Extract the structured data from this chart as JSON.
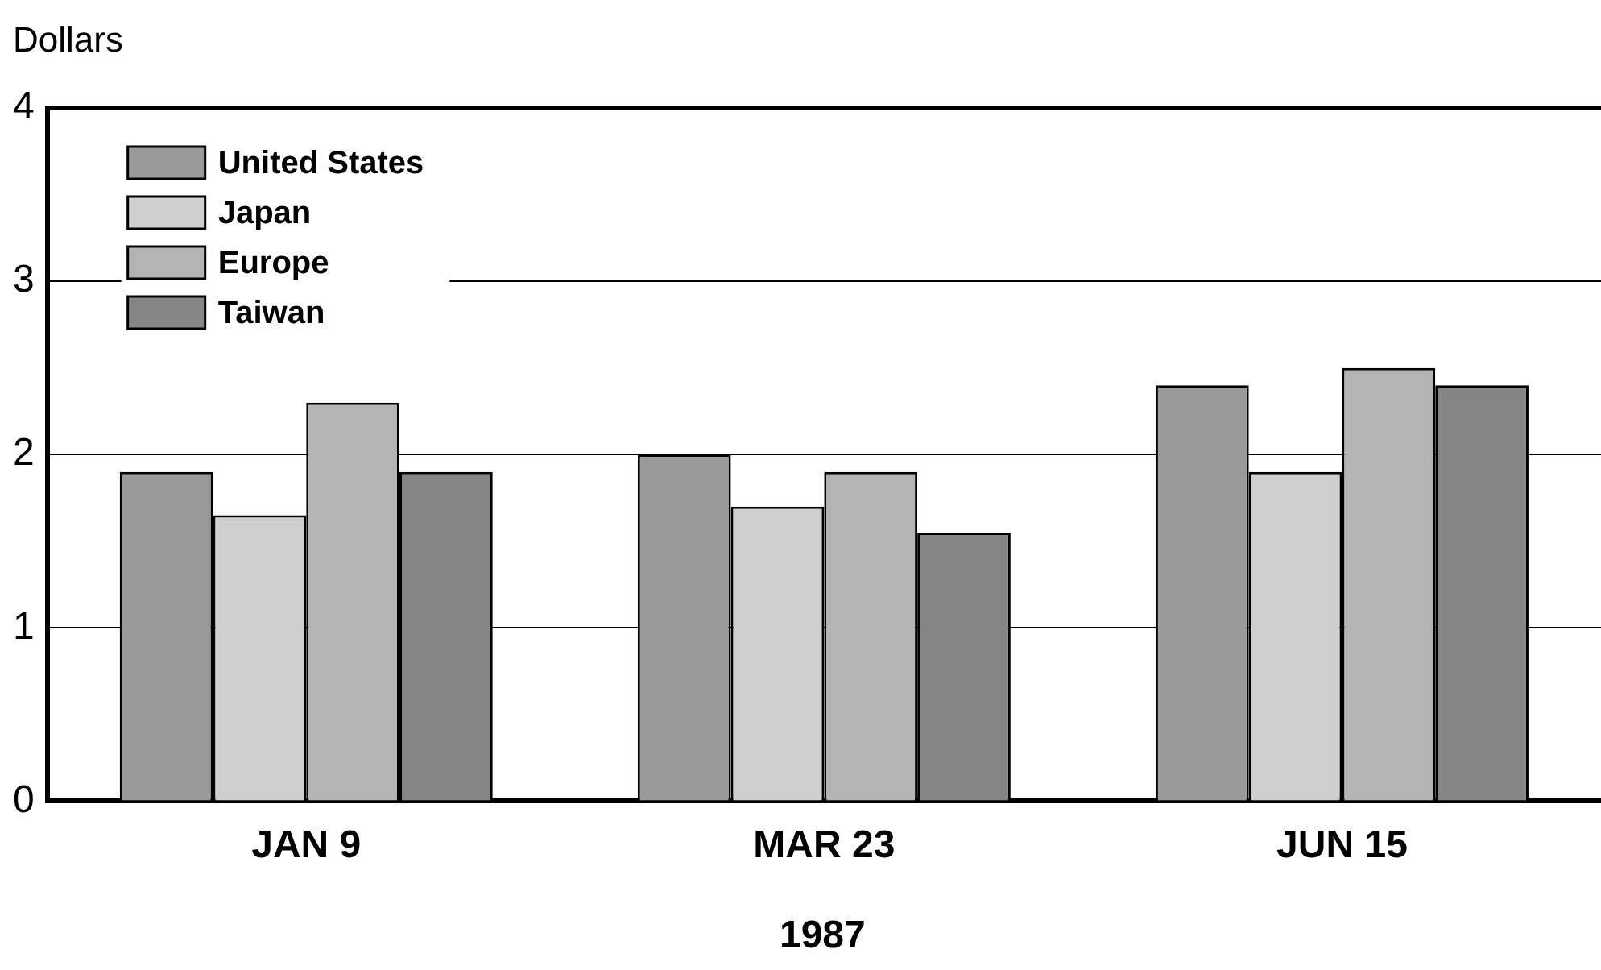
{
  "chart_data": {
    "type": "bar",
    "ylabel": "Dollars",
    "xlabel": "1987",
    "categories": [
      "JAN 9",
      "MAR 23",
      "JUN 15"
    ],
    "series": [
      {
        "name": "United States",
        "color": "#9a9a9a",
        "values": [
          1.9,
          2.0,
          2.4
        ]
      },
      {
        "name": "Japan",
        "color": "#cfcfcf",
        "values": [
          1.65,
          1.7,
          1.9
        ]
      },
      {
        "name": "Europe",
        "color": "#b4b4b4",
        "values": [
          2.3,
          1.9,
          2.5
        ]
      },
      {
        "name": "Taiwan",
        "color": "#858585",
        "values": [
          1.9,
          1.55,
          2.4
        ]
      }
    ],
    "ylim": [
      0,
      4
    ],
    "yticks": [
      0,
      1,
      2,
      3,
      4
    ],
    "grid": "y",
    "legend": "top left"
  }
}
